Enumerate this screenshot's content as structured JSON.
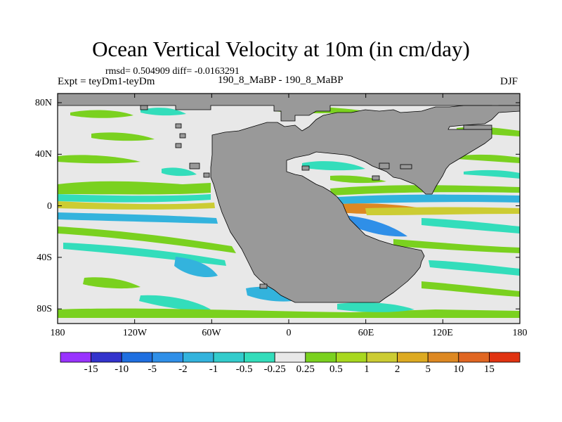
{
  "title": "Ocean Vertical Velocity at 10m (in cm/day)",
  "stats": "rmsd= 0.504909 diff= -0.0163291",
  "experiment": "Expt = teyDm1-teyDm",
  "subtitle": "190_8_MaBP - 190_8_MaBP",
  "season": "DJF",
  "map": {
    "land_color": "#999999",
    "ocean_background": "#e8e8e8",
    "y_ticks": [
      "80N",
      "40N",
      "0",
      "40S",
      "80S"
    ],
    "x_ticks": [
      "180",
      "120W",
      "60W",
      "0",
      "60E",
      "120E",
      "180"
    ]
  },
  "colorbar": {
    "colors": [
      "#9933ff",
      "#3333cc",
      "#1f6fe0",
      "#2f8fe8",
      "#33b3dd",
      "#33cccc",
      "#33ddbb",
      "#e8e8e8",
      "#7ad11f",
      "#a8d81f",
      "#cccc33",
      "#ddaa22",
      "#dd8822",
      "#e06622",
      "#e03311"
    ],
    "labels": [
      "-15",
      "-10",
      "-5",
      "-2",
      "-1",
      "-0.5",
      "-0.25",
      "0.25",
      "0.5",
      "1",
      "2",
      "5",
      "10",
      "15"
    ]
  },
  "palette": {
    "positive_light": "#7ad11f",
    "positive_mid": "#cccc33",
    "positive_strong": "#dd8822",
    "negative_light": "#33ddbb",
    "negative_mid": "#33b3dd",
    "negative_strong": "#2f8fe8"
  }
}
